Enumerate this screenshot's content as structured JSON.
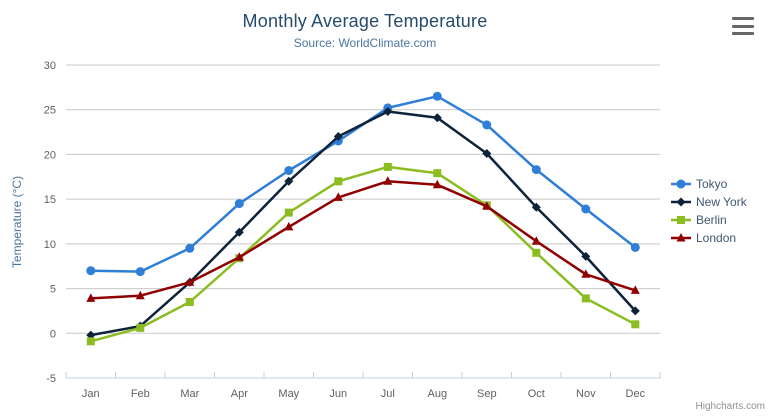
{
  "header": {
    "title": "Monthly Average Temperature",
    "subtitle": "Source: WorldClimate.com"
  },
  "credits": {
    "label": "Highcharts.com"
  },
  "colors": {
    "title": "#274b6d",
    "subtitle": "#4d759e",
    "axis_label": "#606060",
    "axis_line": "#C0D0E0",
    "gridline": "#C8C8C8",
    "legend_text": "#3E576F",
    "credits_text": "#909090"
  },
  "chart_data": {
    "type": "line",
    "title": "Monthly Average Temperature",
    "subtitle": "Source: WorldClimate.com",
    "categories": [
      "Jan",
      "Feb",
      "Mar",
      "Apr",
      "May",
      "Jun",
      "Jul",
      "Aug",
      "Sep",
      "Oct",
      "Nov",
      "Dec"
    ],
    "xlabel": "",
    "ylabel": "Temperature (°C)",
    "ylim": [
      -5,
      30
    ],
    "ytick_step": 5,
    "grid": true,
    "legend_position": "right",
    "series": [
      {
        "name": "Tokyo",
        "color": "#2f7ed8",
        "marker": "circle",
        "values": [
          7.0,
          6.9,
          9.5,
          14.5,
          18.2,
          21.5,
          25.2,
          26.5,
          23.3,
          18.3,
          13.9,
          9.6
        ]
      },
      {
        "name": "New York",
        "color": "#0d233a",
        "marker": "diamond",
        "values": [
          -0.2,
          0.8,
          5.7,
          11.3,
          17.0,
          22.0,
          24.8,
          24.1,
          20.1,
          14.1,
          8.6,
          2.5
        ]
      },
      {
        "name": "Berlin",
        "color": "#8bbc21",
        "marker": "square",
        "values": [
          -0.9,
          0.6,
          3.5,
          8.4,
          13.5,
          17.0,
          18.6,
          17.9,
          14.3,
          9.0,
          3.9,
          1.0
        ]
      },
      {
        "name": "London",
        "color": "#910000",
        "marker": "triangle",
        "values": [
          3.9,
          4.2,
          5.7,
          8.5,
          11.9,
          15.2,
          17.0,
          16.6,
          14.2,
          10.3,
          6.6,
          4.8
        ]
      }
    ]
  }
}
